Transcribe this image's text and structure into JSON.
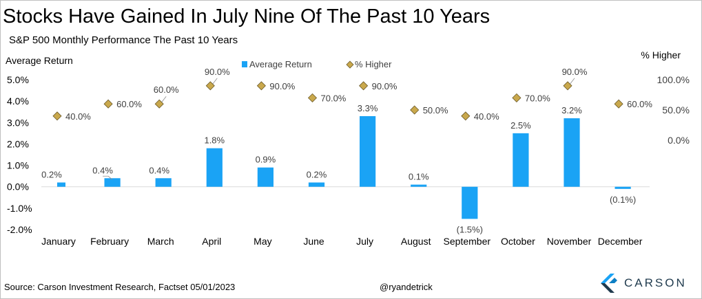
{
  "title": "Stocks Have Gained In July Nine Of The Past 10 Years",
  "subtitle": "S&P 500 Monthly Performance The Past 10 Years",
  "source": "Source: Carson Investment Research, Factset 05/01/2023",
  "handle": "@ryandetrick",
  "logo_text": "CARSON",
  "colors": {
    "bar": "#1aa3f5",
    "diamond": "#c9a84c",
    "diamond_edge": "#6b5a2a",
    "text": "#000000",
    "label": "#404040"
  },
  "chart_data": {
    "type": "bar",
    "categories": [
      "January",
      "February",
      "March",
      "April",
      "May",
      "June",
      "July",
      "August",
      "September",
      "October",
      "November",
      "December"
    ],
    "series": [
      {
        "name": "Average Return",
        "axis": "left",
        "type": "bar",
        "values": [
          0.2,
          0.4,
          0.4,
          1.8,
          0.9,
          0.2,
          3.3,
          0.1,
          -1.5,
          2.5,
          3.2,
          -0.1
        ],
        "labels": [
          "0.2%",
          "0.4%",
          "0.4%",
          "1.8%",
          "0.9%",
          "0.2%",
          "3.3%",
          "0.1%",
          "(1.5%)",
          "2.5%",
          "3.2%",
          "(0.1%)"
        ]
      },
      {
        "name": "% Higher",
        "axis": "right",
        "type": "scatter",
        "marker": "diamond",
        "values": [
          40,
          60,
          60,
          90,
          90,
          70,
          90,
          50,
          40,
          70,
          90,
          60
        ],
        "labels": [
          "40.0%",
          "60.0%",
          "60.0%",
          "90.0%",
          "90.0%",
          "70.0%",
          "90.0%",
          "50.0%",
          "40.0%",
          "70.0%",
          "90.0%",
          "60.0%"
        ]
      }
    ],
    "left_axis": {
      "title": "Average Return",
      "min": -2.0,
      "max": 5.0,
      "ticks": [
        5.0,
        4.0,
        3.0,
        2.0,
        1.0,
        0.0,
        -1.0,
        -2.0
      ],
      "tick_labels": [
        "5.0%",
        "4.0%",
        "3.0%",
        "2.0%",
        "1.0%",
        "0.0%",
        "-1.0%",
        "-2.0%"
      ]
    },
    "right_axis": {
      "title": "% Higher",
      "ticks": [
        100,
        50,
        0
      ],
      "tick_labels": [
        "100.0%",
        "50.0%",
        "0.0%"
      ]
    },
    "legend": {
      "position": "top",
      "items": [
        "Average Return",
        "% Higher"
      ]
    },
    "grid": false
  }
}
